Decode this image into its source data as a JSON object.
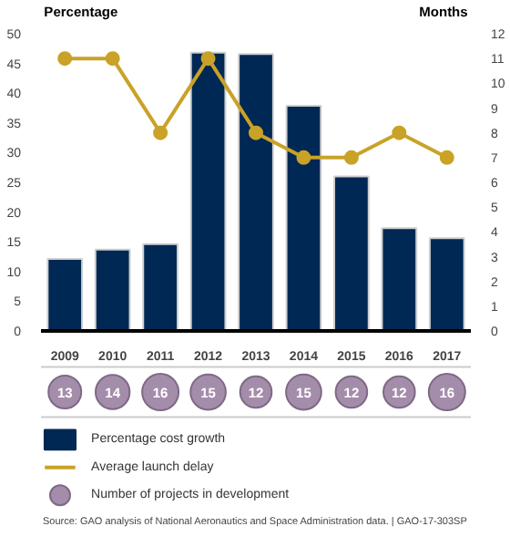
{
  "chart_data": [
    {
      "type": "bar",
      "ylabel": "Percentage",
      "y2label": "Months",
      "categories": [
        "2009",
        "2010",
        "2011",
        "2012",
        "2013",
        "2014",
        "2015",
        "2016",
        "2017"
      ],
      "series": [
        {
          "name": "Percentage cost growth",
          "color": "#002855",
          "values": [
            12.1,
            13.7,
            14.6,
            46.8,
            46.6,
            37.9,
            26.0,
            17.3,
            15.6
          ]
        },
        {
          "name": "Average launch delay",
          "type": "line",
          "axis": "y2",
          "color": "#c9a227",
          "marker": "circle",
          "values": [
            11,
            11,
            8,
            11,
            8,
            7,
            7,
            8,
            7
          ]
        }
      ],
      "ylim": [
        0,
        50
      ],
      "yticks": [
        0,
        5,
        10,
        15,
        20,
        25,
        30,
        35,
        40,
        45,
        50
      ],
      "y2lim": [
        0,
        12
      ],
      "y2ticks": [
        0,
        1,
        2,
        3,
        4,
        5,
        6,
        7,
        8,
        9,
        10,
        11,
        12
      ],
      "grid": false,
      "legend": "bottom"
    },
    {
      "type": "other",
      "series": [
        {
          "name": "Number of projects in development",
          "color": "#a48daa",
          "values": [
            13,
            14,
            16,
            15,
            12,
            15,
            12,
            12,
            16
          ]
        }
      ],
      "data_labels": true,
      "legend": "bottom",
      "annotations": [
        "Source: GAO analysis of National Aeronautics and Space Administration data.  |  GAO-17-303SP"
      ]
    }
  ]
}
